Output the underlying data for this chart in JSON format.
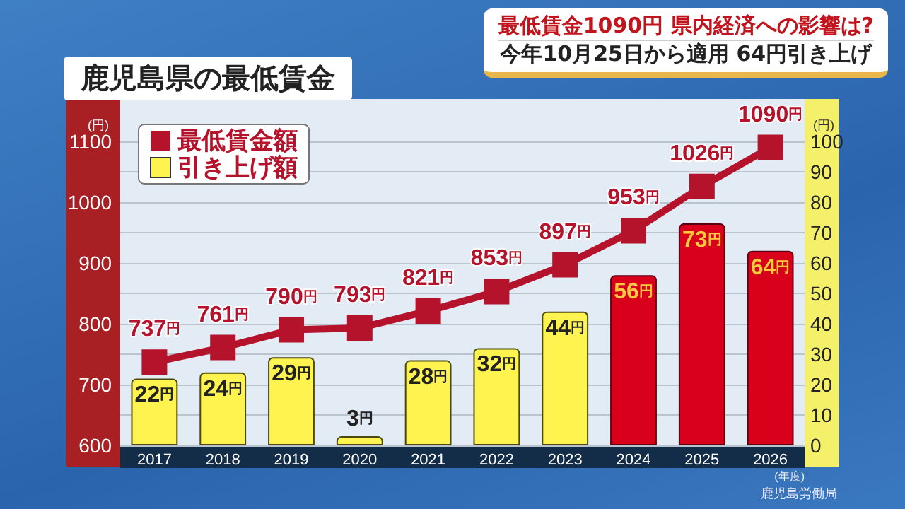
{
  "chart_data": {
    "type": "bar",
    "title": "鹿児島県の最低賃金",
    "annotations": [
      "最低賃金1090円 県内経済への影響は?",
      "今年10月25日から適用 64円引き上げ",
      "鹿児島労働局"
    ],
    "xlabel": "(年度)",
    "ylabel": "(円)",
    "y2label": "(円)",
    "categories": [
      "2017",
      "2018",
      "2019",
      "2020",
      "2021",
      "2022",
      "2023",
      "2024",
      "2025",
      "2026"
    ],
    "series": [
      {
        "name": "最低賃金額",
        "type": "line",
        "color": "#b5122b",
        "values": [
          737,
          761,
          790,
          793,
          821,
          853,
          897,
          953,
          1026,
          1090
        ],
        "value_labels": [
          "737円",
          "761円",
          "790円",
          "793円",
          "821円",
          "853円",
          "897円",
          "953円",
          "1026円",
          "1090円"
        ]
      },
      {
        "name": "引き上げ額",
        "type": "bar",
        "axis": "y2",
        "colors": [
          "#fff44f",
          "#fff44f",
          "#fff44f",
          "#fff44f",
          "#fff44f",
          "#fff44f",
          "#fff44f",
          "#d9001b",
          "#d9001b",
          "#d9001b"
        ],
        "values": [
          22,
          24,
          29,
          3,
          28,
          32,
          44,
          56,
          73,
          64
        ],
        "value_labels": [
          "22円",
          "24円",
          "29円",
          "3円",
          "28円",
          "32円",
          "44円",
          "56円",
          "73円",
          "64円"
        ]
      }
    ],
    "ylim": [
      600,
      1100
    ],
    "yticks": [
      600,
      700,
      800,
      900,
      1000,
      1100
    ],
    "y2lim": [
      0,
      100
    ],
    "y2ticks": [
      0,
      10,
      20,
      30,
      40,
      50,
      60,
      70,
      80,
      90,
      100
    ],
    "grid": "y2",
    "legend": "top left",
    "marker": "square",
    "line_style": "solid"
  }
}
